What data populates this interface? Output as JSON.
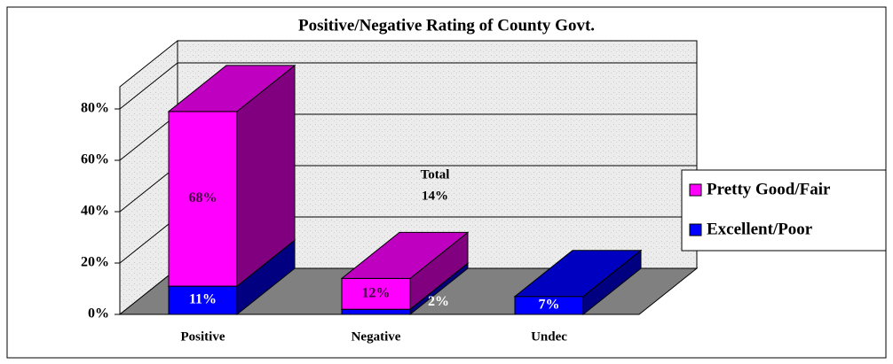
{
  "chart_data": {
    "type": "bar3d_stacked",
    "title": "Positive/Negative Rating of County Govt.",
    "categories": [
      "Positive",
      "Negative",
      "Undec"
    ],
    "series": [
      {
        "name": "Excellent/Poor",
        "color": "#0000ff",
        "values": [
          11,
          2,
          7
        ],
        "value_labels": [
          "11%",
          "2%",
          "7%"
        ]
      },
      {
        "name": "Pretty Good/Fair",
        "color": "#ff00ff",
        "values": [
          68,
          12,
          null
        ],
        "value_labels": [
          "68%",
          "12%",
          null
        ]
      }
    ],
    "annotations": [
      "Total",
      "14%"
    ],
    "ylim": [
      0,
      80
    ],
    "yticks": [
      {
        "value": 0,
        "label": "0%"
      },
      {
        "value": 20,
        "label": "20%"
      },
      {
        "value": 40,
        "label": "40%"
      },
      {
        "value": 60,
        "label": "60%"
      },
      {
        "value": 80,
        "label": "80%"
      }
    ],
    "grid": true,
    "legend": "right"
  }
}
